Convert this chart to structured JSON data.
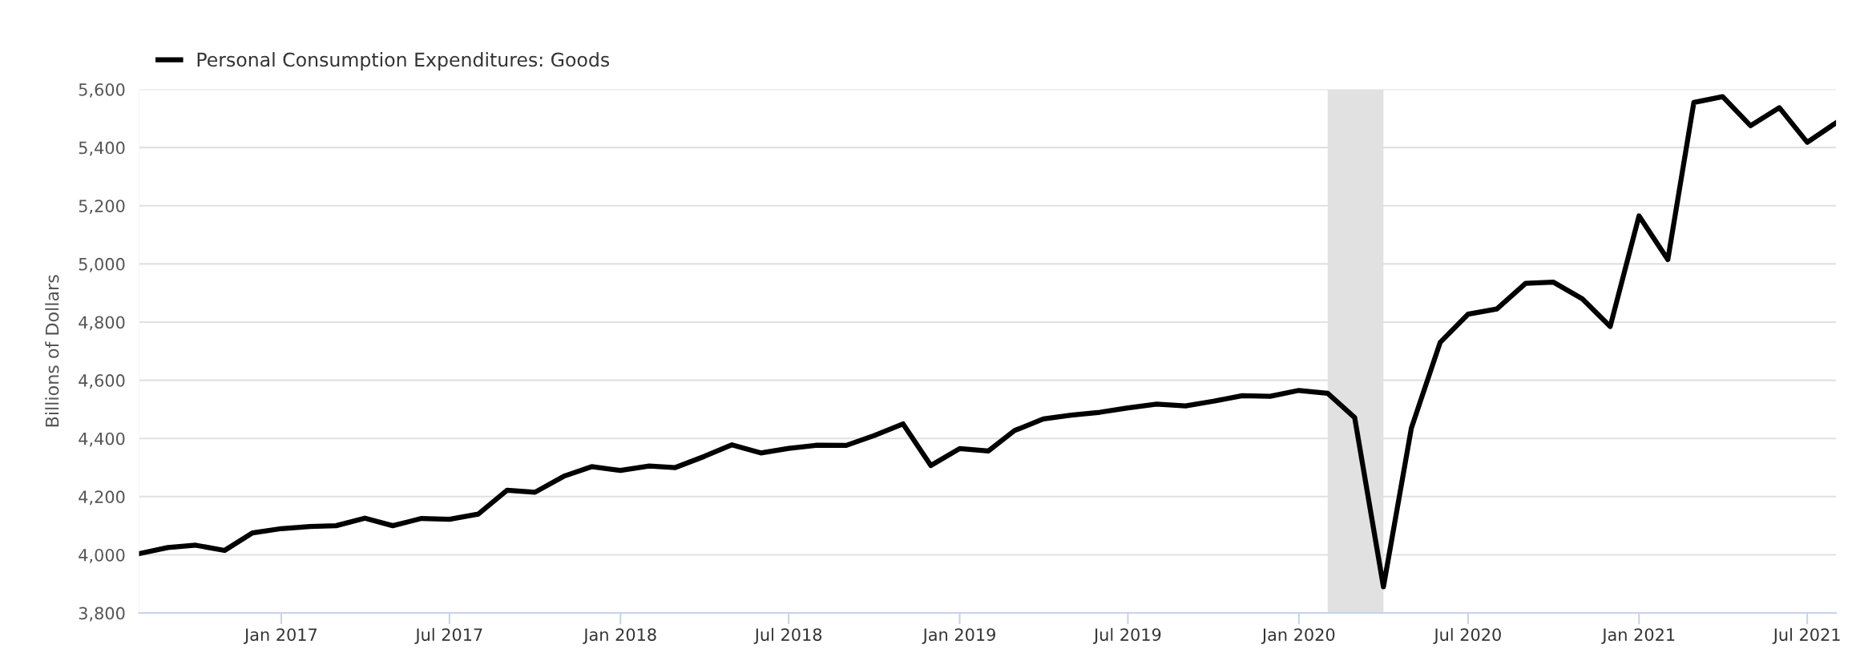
{
  "chart_data": {
    "type": "line",
    "ylabel": "Billions of Dollars",
    "x": [
      "2016-08",
      "2016-09",
      "2016-10",
      "2016-11",
      "2016-12",
      "2017-01",
      "2017-02",
      "2017-03",
      "2017-04",
      "2017-05",
      "2017-06",
      "2017-07",
      "2017-08",
      "2017-09",
      "2017-10",
      "2017-11",
      "2017-12",
      "2018-01",
      "2018-02",
      "2018-03",
      "2018-04",
      "2018-05",
      "2018-06",
      "2018-07",
      "2018-08",
      "2018-09",
      "2018-10",
      "2018-11",
      "2018-12",
      "2019-01",
      "2019-02",
      "2019-03",
      "2019-04",
      "2019-05",
      "2019-06",
      "2019-07",
      "2019-08",
      "2019-09",
      "2019-10",
      "2019-11",
      "2019-12",
      "2020-01",
      "2020-02",
      "2020-03",
      "2020-04",
      "2020-05",
      "2020-06",
      "2020-07",
      "2020-08",
      "2020-09",
      "2020-10",
      "2020-11",
      "2020-12",
      "2021-01",
      "2021-02",
      "2021-03",
      "2021-04",
      "2021-05",
      "2021-06",
      "2021-07",
      "2021-08"
    ],
    "series": [
      {
        "name": "Personal Consumption Expenditures: Goods",
        "color": "#000000",
        "values": [
          4004,
          4025,
          4033,
          4015,
          4075,
          4090,
          4097,
          4100,
          4126,
          4100,
          4125,
          4122,
          4140,
          4222,
          4215,
          4270,
          4303,
          4290,
          4305,
          4300,
          4338,
          4378,
          4350,
          4366,
          4377,
          4376,
          4410,
          4450,
          4307,
          4365,
          4357,
          4427,
          4467,
          4480,
          4490,
          4505,
          4518,
          4512,
          4528,
          4547,
          4545,
          4565,
          4555,
          4472,
          3890,
          4435,
          4730,
          4827,
          4845,
          4933,
          4937,
          4880,
          4785,
          5165,
          5015,
          5555,
          5575,
          5475,
          5537,
          5418,
          5485
        ]
      }
    ],
    "xlim": [
      "2016-08",
      "2021-08"
    ],
    "xticks": [
      {
        "value": "2017-01",
        "label": "Jan 2017"
      },
      {
        "value": "2017-07",
        "label": "Jul 2017"
      },
      {
        "value": "2018-01",
        "label": "Jan 2018"
      },
      {
        "value": "2018-07",
        "label": "Jul 2018"
      },
      {
        "value": "2019-01",
        "label": "Jan 2019"
      },
      {
        "value": "2019-07",
        "label": "Jul 2019"
      },
      {
        "value": "2020-01",
        "label": "Jan 2020"
      },
      {
        "value": "2020-07",
        "label": "Jul 2020"
      },
      {
        "value": "2021-01",
        "label": "Jan 2021"
      },
      {
        "value": "2021-07",
        "label": "Jul 2021"
      }
    ],
    "ylim": [
      3800,
      5600
    ],
    "yticks": [
      {
        "value": 3800,
        "label": "3,800"
      },
      {
        "value": 4000,
        "label": "4,000"
      },
      {
        "value": 4200,
        "label": "4,200"
      },
      {
        "value": 4400,
        "label": "4,400"
      },
      {
        "value": 4600,
        "label": "4,600"
      },
      {
        "value": 4800,
        "label": "4,800"
      },
      {
        "value": 5000,
        "label": "5,000"
      },
      {
        "value": 5200,
        "label": "5,200"
      },
      {
        "value": 5400,
        "label": "5,400"
      },
      {
        "value": 5600,
        "label": "5,600"
      }
    ],
    "bands": [
      {
        "axis": "x",
        "from": "2020-02",
        "to": "2020-04",
        "color": "#e1e1e1"
      }
    ],
    "grid": "y",
    "legend": "top left",
    "marker": "none",
    "line_style": "solid"
  }
}
